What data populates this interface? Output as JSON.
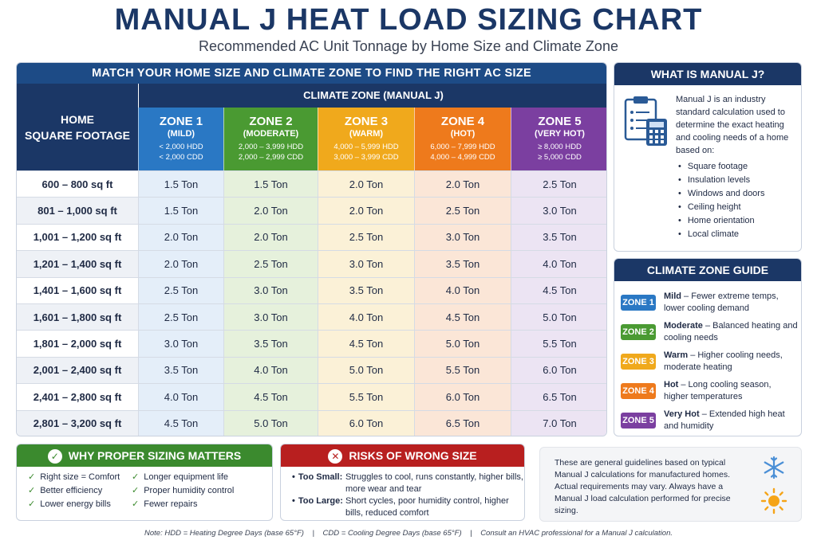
{
  "title": "MANUAL J HEAT LOAD SIZING CHART",
  "subtitle": "Recommended AC Unit Tonnage by Home Size and Climate Zone",
  "table": {
    "banner": "MATCH YOUR HOME SIZE AND CLIMATE ZONE TO FIND THE RIGHT AC SIZE",
    "left_header_line1": "HOME",
    "left_header_line2": "SQUARE FOOTAGE",
    "climate_header": "CLIMATE ZONE (MANUAL J)",
    "zones": [
      {
        "name": "ZONE 1",
        "desc": "(MILD)",
        "hdd": "< 2,000 HDD",
        "cdd": "< 2,000 CDD",
        "color": "#2a78c4"
      },
      {
        "name": "ZONE 2",
        "desc": "(MODERATE)",
        "hdd": "2,000 – 3,999 HDD",
        "cdd": "2,000 – 2,999 CDD",
        "color": "#4a9a32"
      },
      {
        "name": "ZONE 3",
        "desc": "(WARM)",
        "hdd": "4,000 – 5,999 HDD",
        "cdd": "3,000 – 3,999 CDD",
        "color": "#f0a91c"
      },
      {
        "name": "ZONE 4",
        "desc": "(HOT)",
        "hdd": "6,000 – 7,999 HDD",
        "cdd": "4,000 – 4,999 CDD",
        "color": "#ee7a1c"
      },
      {
        "name": "ZONE 5",
        "desc": "(VERY HOT)",
        "hdd": "≥ 8,000 HDD",
        "cdd": "≥ 5,000 CDD",
        "color": "#7b3fa0"
      }
    ],
    "rows": [
      {
        "sqft": "600 – 800 sq ft",
        "vals": [
          "1.5 Ton",
          "1.5 Ton",
          "2.0 Ton",
          "2.0 Ton",
          "2.5 Ton"
        ]
      },
      {
        "sqft": "801 – 1,000 sq ft",
        "vals": [
          "1.5 Ton",
          "2.0 Ton",
          "2.0 Ton",
          "2.5 Ton",
          "3.0 Ton"
        ]
      },
      {
        "sqft": "1,001 – 1,200 sq ft",
        "vals": [
          "2.0 Ton",
          "2.0 Ton",
          "2.5 Ton",
          "3.0 Ton",
          "3.5 Ton"
        ]
      },
      {
        "sqft": "1,201 – 1,400 sq ft",
        "vals": [
          "2.0 Ton",
          "2.5 Ton",
          "3.0 Ton",
          "3.5 Ton",
          "4.0 Ton"
        ]
      },
      {
        "sqft": "1,401 – 1,600 sq ft",
        "vals": [
          "2.5 Ton",
          "3.0 Ton",
          "3.5 Ton",
          "4.0 Ton",
          "4.5 Ton"
        ]
      },
      {
        "sqft": "1,601 – 1,800 sq ft",
        "vals": [
          "2.5 Ton",
          "3.0 Ton",
          "4.0 Ton",
          "4.5 Ton",
          "5.0 Ton"
        ]
      },
      {
        "sqft": "1,801 – 2,000 sq ft",
        "vals": [
          "3.0 Ton",
          "3.5 Ton",
          "4.5 Ton",
          "5.0 Ton",
          "5.5 Ton"
        ]
      },
      {
        "sqft": "2,001 – 2,400 sq ft",
        "vals": [
          "3.5 Ton",
          "4.0 Ton",
          "5.0 Ton",
          "5.5 Ton",
          "6.0 Ton"
        ]
      },
      {
        "sqft": "2,401 – 2,800 sq ft",
        "vals": [
          "4.0 Ton",
          "4.5 Ton",
          "5.5 Ton",
          "6.0 Ton",
          "6.5 Ton"
        ]
      },
      {
        "sqft": "2,801 – 3,200 sq ft",
        "vals": [
          "4.5 Ton",
          "5.0 Ton",
          "6.0 Ton",
          "6.5 Ton",
          "7.0 Ton"
        ]
      }
    ]
  },
  "what_is": {
    "heading": "WHAT IS MANUAL J?",
    "body": "Manual J is an industry standard calculation used to determine the exact heating and cooling needs of a home based on:",
    "items": [
      "Square footage",
      "Insulation levels",
      "Windows and doors",
      "Ceiling height",
      "Home orientation",
      "Local climate"
    ],
    "icon": "clipboard-calculator-icon"
  },
  "zone_guide": {
    "heading": "CLIMATE ZONE GUIDE",
    "items": [
      {
        "badge": "ZONE 1",
        "title": "Mild",
        "text": " – Fewer extreme temps, lower cooling demand",
        "color": "#2a78c4"
      },
      {
        "badge": "ZONE 2",
        "title": "Moderate",
        "text": " – Balanced heating and cooling needs",
        "color": "#4a9a32"
      },
      {
        "badge": "ZONE 3",
        "title": "Warm",
        "text": " – Higher cooling needs, moderate heating",
        "color": "#f0a91c"
      },
      {
        "badge": "ZONE 4",
        "title": "Hot",
        "text": " – Long cooling season, higher temperatures",
        "color": "#ee7a1c"
      },
      {
        "badge": "ZONE 5",
        "title": "Very Hot",
        "text": " – Extended high heat and humidity",
        "color": "#7b3fa0"
      }
    ]
  },
  "why": {
    "heading": "WHY PROPER SIZING MATTERS",
    "items": [
      "Right size = Comfort",
      "Longer equipment life",
      "Better efficiency",
      "Proper humidity control",
      "Lower energy bills",
      "Fewer repairs"
    ]
  },
  "risks": {
    "heading": "RISKS OF WRONG SIZE",
    "items": [
      {
        "label": "Too Small:",
        "text": "Struggles to cool, runs constantly, higher bills, more wear and tear"
      },
      {
        "label": "Too Large:",
        "text": "Short cycles, poor humidity control, higher bills, reduced comfort"
      }
    ]
  },
  "guideline_note": "These are general guidelines based on typical Manual J calculations for manufactured homes. Actual requirements may vary. Always have a Manual J load calculation performed for precise sizing.",
  "footer": "Note: HDD = Heating Degree Days (base 65°F)    |    CDD = Cooling Degree Days (base 65°F)    |    Consult an HVAC professional for a Manual J calculation."
}
